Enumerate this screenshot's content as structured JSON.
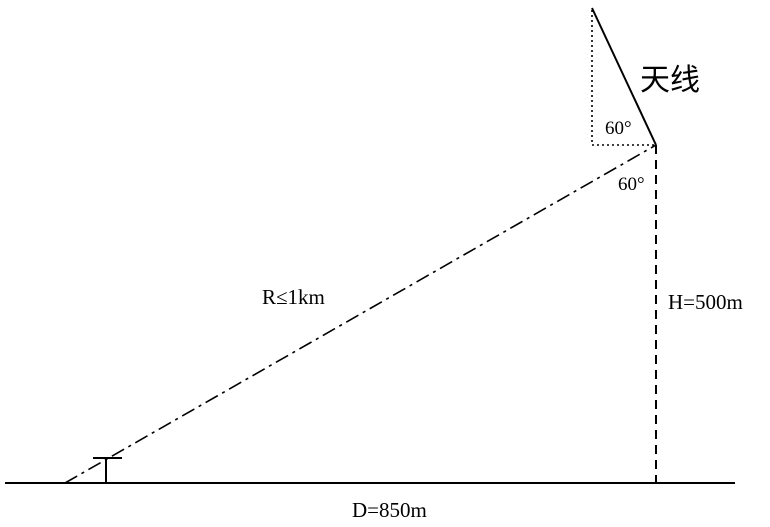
{
  "labels": {
    "antenna": "天线",
    "angle_top": "60°",
    "angle_bottom": "60°",
    "range": "R≤1km",
    "height": "H=500m",
    "distance": "D=850m"
  }
}
